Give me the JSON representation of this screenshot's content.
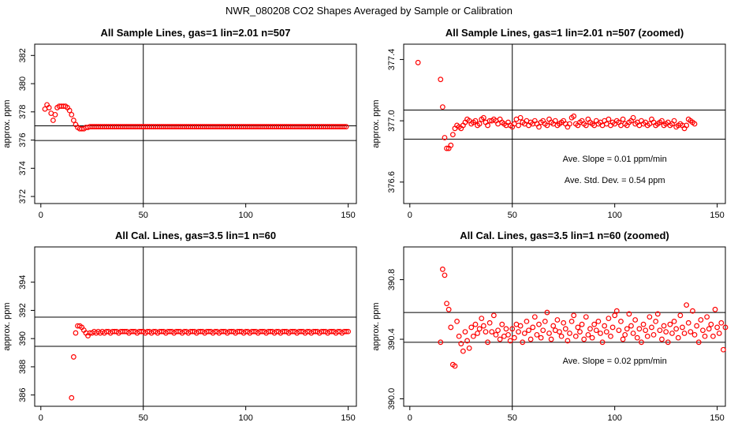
{
  "figure_title": "NWR_080208  CO2 Shapes Averaged by Sample or Calibration",
  "chart_data": [
    {
      "type": "scatter",
      "title": "All Sample Lines, gas=1 lin=2.01 n=507",
      "ylabel": "approx. ppm",
      "xlabel": "",
      "xlim": [
        -3,
        154
      ],
      "ylim": [
        371.5,
        382.8
      ],
      "xticks": [
        0,
        50,
        100,
        150
      ],
      "yticks": [
        372,
        374,
        376,
        378,
        380,
        382
      ],
      "ytick_labels": [
        "372",
        "374",
        "376",
        "378",
        "380",
        "382"
      ],
      "hlines": [
        377.01,
        375.97
      ],
      "vlines": [
        50
      ],
      "annotations": [],
      "series": [
        {
          "name": "sample-lines",
          "x_start": 2,
          "x_step": 1,
          "y": [
            378.2,
            378.5,
            378.3,
            377.9,
            377.4,
            377.8,
            378.3,
            378.4,
            378.4,
            378.4,
            378.4,
            378.3,
            378.1,
            377.8,
            377.4,
            377.1,
            376.9,
            376.8,
            376.8,
            376.8,
            376.9,
            376.9,
            376.95,
            376.95,
            376.95,
            376.95,
            376.95,
            376.95,
            376.95,
            376.95,
            376.95,
            376.95,
            376.95,
            376.95,
            376.95,
            376.95,
            376.95,
            376.95,
            376.95,
            376.95,
            376.95,
            376.95,
            376.95,
            376.95,
            376.95,
            376.95,
            376.95,
            376.95,
            376.95,
            376.95,
            376.95,
            376.95,
            376.95,
            376.95,
            376.95,
            376.95,
            376.95,
            376.95,
            376.95,
            376.95,
            376.95,
            376.95,
            376.95,
            376.95,
            376.95,
            376.95,
            376.95,
            376.95,
            376.95,
            376.95,
            376.95,
            376.95,
            376.95,
            376.95,
            376.95,
            376.95,
            376.95,
            376.95,
            376.95,
            376.95,
            376.95,
            376.95,
            376.95,
            376.95,
            376.95,
            376.95,
            376.95,
            376.95,
            376.95,
            376.95,
            376.95,
            376.95,
            376.95,
            376.95,
            376.95,
            376.95,
            376.95,
            376.95,
            376.95,
            376.95,
            376.95,
            376.95,
            376.95,
            376.95,
            376.95,
            376.95,
            376.95,
            376.95,
            376.95,
            376.95,
            376.95,
            376.95,
            376.95,
            376.95,
            376.95,
            376.95,
            376.95,
            376.95,
            376.95,
            376.95,
            376.95,
            376.95,
            376.95,
            376.95,
            376.95,
            376.95,
            376.95,
            376.95,
            376.95,
            376.95,
            376.95,
            376.95,
            376.95,
            376.95,
            376.95,
            376.95,
            376.95,
            376.95,
            376.95,
            376.95,
            376.95,
            376.95,
            376.95,
            376.95,
            376.95,
            376.95,
            376.95,
            376.95
          ]
        }
      ]
    },
    {
      "type": "scatter",
      "title": "All Sample Lines, gas=1 lin=2.01 n=507 (zoomed)",
      "ylabel": "approx. ppm",
      "xlabel": "",
      "xlim": [
        -3,
        154
      ],
      "ylim": [
        376.46,
        377.5
      ],
      "xticks": [
        0,
        50,
        100,
        150
      ],
      "yticks": [
        376.6,
        377.0,
        377.4
      ],
      "ytick_labels": [
        "376.6",
        "377.0",
        "377.4"
      ],
      "hlines": [
        377.07,
        376.88
      ],
      "vlines": [
        50
      ],
      "annotations": [
        "Ave. Slope =  0.01  ppm/min",
        "Ave. Std. Dev. =  0.54  ppm"
      ],
      "series": [
        {
          "name": "sample-lines-zoomed",
          "x_start": 4,
          "x_step": 1,
          "y": [
            377.38,
            null,
            null,
            null,
            null,
            null,
            null,
            null,
            null,
            null,
            null,
            377.27,
            377.09,
            376.89,
            376.82,
            376.82,
            376.84,
            376.91,
            376.95,
            376.97,
            376.96,
            376.95,
            376.97,
            376.99,
            377.01,
            377.0,
            376.98,
            376.99,
            377.0,
            376.97,
            376.98,
            377.01,
            377.02,
            376.99,
            376.97,
            377.0,
            377.0,
            377.01,
            377.0,
            376.98,
            377.01,
            376.99,
            376.98,
            376.97,
            376.99,
            376.97,
            376.96,
            376.98,
            377.01,
            376.97,
            377.02,
            376.99,
            376.98,
            377.0,
            376.97,
            376.99,
            376.98,
            377.0,
            376.98,
            376.96,
            376.99,
            377.0,
            376.98,
            376.97,
            377.01,
            376.99,
            376.98,
            377.0,
            376.97,
            376.98,
            376.99,
            377.0,
            376.98,
            376.96,
            376.98,
            377.02,
            377.03,
            376.98,
            376.97,
            376.99,
            377.0,
            376.98,
            376.97,
            377.01,
            376.99,
            376.98,
            376.97,
            377.0,
            376.98,
            376.99,
            376.97,
            377.0,
            376.98,
            377.01,
            376.97,
            376.99,
            376.98,
            377.0,
            376.99,
            376.97,
            377.01,
            376.98,
            376.97,
            376.99,
            377.0,
            377.02,
            376.98,
            376.99,
            376.97,
            377.0,
            376.98,
            376.99,
            376.97,
            376.98,
            377.01,
            376.99,
            376.97,
            376.98,
            376.99,
            377.0,
            376.97,
            376.98,
            376.99,
            376.97,
            376.98,
            377.0,
            376.96,
            376.97,
            376.98,
            376.97,
            376.95,
            376.97,
            377.01,
            377.0,
            376.99,
            376.98
          ]
        }
      ]
    },
    {
      "type": "scatter",
      "title": "All Cal. Lines, gas=3.5 lin=1 n=60",
      "ylabel": "approx. ppm",
      "xlabel": "",
      "xlim": [
        -3,
        154
      ],
      "ylim": [
        385.2,
        396.5
      ],
      "xticks": [
        0,
        50,
        100,
        150
      ],
      "yticks": [
        386,
        388,
        390,
        392,
        394
      ],
      "ytick_labels": [
        "386",
        "388",
        "390",
        "392",
        "394"
      ],
      "hlines": [
        391.52,
        389.45
      ],
      "vlines": [
        50
      ],
      "annotations": [],
      "series": [
        {
          "name": "cal-lines",
          "x_start": 15,
          "x_step": 1,
          "y": [
            385.8,
            388.7,
            390.4,
            390.9,
            390.9,
            390.8,
            390.6,
            390.4,
            390.2,
            390.4,
            390.4,
            390.5,
            390.4,
            390.5,
            390.4,
            390.5,
            390.4,
            390.5,
            390.5,
            390.4,
            390.5,
            390.5,
            390.5,
            390.4,
            390.5,
            390.5,
            390.5,
            390.5,
            390.4,
            390.5,
            390.5,
            390.5,
            390.4,
            390.5,
            390.5,
            390.5,
            390.4,
            390.5,
            390.5,
            390.4,
            390.5,
            390.5,
            390.4,
            390.5,
            390.5,
            390.5,
            390.4,
            390.5,
            390.5,
            390.5,
            390.4,
            390.5,
            390.5,
            390.5,
            390.4,
            390.5,
            390.5,
            390.4,
            390.5,
            390.5,
            390.5,
            390.4,
            390.5,
            390.5,
            390.5,
            390.4,
            390.5,
            390.5,
            390.5,
            390.4,
            390.5,
            390.5,
            390.4,
            390.5,
            390.5,
            390.5,
            390.4,
            390.5,
            390.5,
            390.5,
            390.4,
            390.5,
            390.5,
            390.5,
            390.4,
            390.5,
            390.5,
            390.4,
            390.5,
            390.5,
            390.5,
            390.4,
            390.5,
            390.5,
            390.5,
            390.4,
            390.5,
            390.5,
            390.5,
            390.4,
            390.5,
            390.5,
            390.4,
            390.5,
            390.5,
            390.5,
            390.4,
            390.5,
            390.5,
            390.5,
            390.4,
            390.5,
            390.5,
            390.5,
            390.4,
            390.5,
            390.5,
            390.4,
            390.5,
            390.5,
            390.5,
            390.4,
            390.5,
            390.5,
            390.5,
            390.4,
            390.5,
            390.5,
            390.5,
            390.4,
            390.5,
            390.5,
            390.4,
            390.5,
            390.5,
            390.5
          ]
        }
      ]
    },
    {
      "type": "scatter",
      "title": "All Cal. Lines, gas=3.5 lin=1 n=60 (zoomed)",
      "ylabel": "approx. ppm",
      "xlabel": "",
      "xlim": [
        -3,
        154
      ],
      "ylim": [
        389.95,
        391.02
      ],
      "xticks": [
        0,
        50,
        100,
        150
      ],
      "yticks": [
        390.0,
        390.4,
        390.8
      ],
      "ytick_labels": [
        "390.0",
        "390.4",
        "390.8"
      ],
      "hlines": [
        390.58,
        390.38
      ],
      "vlines": [
        50
      ],
      "annotations": [
        "Ave. Slope =  0.02  ppm/min"
      ],
      "series": [
        {
          "name": "cal-lines-zoomed",
          "x_start": 15,
          "x_step": 1,
          "y": [
            390.38,
            390.87,
            390.83,
            390.64,
            390.6,
            390.48,
            390.23,
            390.22,
            390.52,
            390.42,
            390.37,
            390.32,
            390.45,
            390.39,
            390.34,
            390.48,
            390.42,
            390.5,
            390.44,
            390.47,
            390.54,
            390.49,
            390.45,
            390.38,
            390.51,
            390.45,
            390.56,
            390.43,
            390.46,
            390.4,
            390.5,
            390.42,
            390.47,
            390.43,
            390.39,
            390.47,
            390.41,
            390.5,
            390.45,
            390.49,
            390.38,
            390.44,
            390.52,
            390.46,
            390.4,
            390.48,
            390.55,
            390.43,
            390.5,
            390.41,
            390.46,
            390.52,
            390.58,
            390.44,
            390.4,
            390.49,
            390.46,
            390.53,
            390.45,
            390.42,
            390.51,
            390.47,
            390.39,
            390.44,
            390.52,
            390.56,
            390.42,
            390.48,
            390.45,
            390.5,
            390.4,
            390.55,
            390.43,
            390.47,
            390.41,
            390.5,
            390.46,
            390.52,
            390.44,
            390.38,
            390.49,
            390.45,
            390.54,
            390.42,
            390.48,
            390.56,
            390.59,
            390.46,
            390.52,
            390.4,
            390.43,
            390.47,
            390.57,
            390.49,
            390.44,
            390.53,
            390.41,
            390.47,
            390.38,
            390.5,
            390.46,
            390.42,
            390.55,
            390.48,
            390.43,
            390.52,
            390.57,
            390.46,
            390.4,
            390.49,
            390.45,
            390.38,
            390.5,
            390.44,
            390.52,
            390.47,
            390.41,
            390.56,
            390.48,
            390.44,
            390.63,
            390.51,
            390.45,
            390.59,
            390.43,
            390.49,
            390.38,
            390.53,
            390.46,
            390.42,
            390.55,
            390.47,
            390.5,
            390.42,
            390.6,
            390.48,
            390.44,
            390.51,
            390.33,
            390.48
          ]
        }
      ]
    }
  ]
}
